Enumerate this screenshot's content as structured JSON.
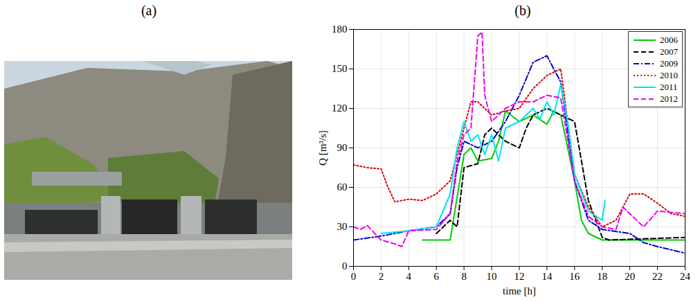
{
  "photo": {
    "label": "(a)"
  },
  "chart_data": {
    "type": "line",
    "title": "(b)",
    "x_label": "time [h]",
    "y_label": "Q [m³/s]",
    "xlim": [
      0,
      24
    ],
    "xticks": [
      0,
      2,
      4,
      6,
      8,
      10,
      12,
      14,
      16,
      18,
      20,
      22,
      24
    ],
    "ylim": [
      0,
      180
    ],
    "yticks": [
      0,
      30,
      60,
      90,
      120,
      150,
      180
    ],
    "grid": true,
    "legend": "top-right",
    "series": [
      {
        "name": "2006",
        "color": "#00cc00",
        "line_style": "solid",
        "x": [
          5,
          7,
          8,
          8.5,
          9,
          10,
          10.5,
          11,
          12,
          13,
          14,
          14.5,
          15,
          16,
          16.5,
          17,
          18,
          24
        ],
        "values": [
          20,
          20,
          85,
          90,
          80,
          82,
          95,
          118,
          110,
          115,
          108,
          118,
          115,
          65,
          35,
          25,
          20,
          20
        ]
      },
      {
        "name": "2007",
        "color": "#000000",
        "line_style": "dashed",
        "x": [
          6,
          7,
          7.5,
          8,
          9,
          9.5,
          10,
          11,
          12,
          12.5,
          13,
          14,
          15,
          16,
          17,
          18,
          18.5,
          24
        ],
        "values": [
          25,
          35,
          30,
          75,
          78,
          100,
          105,
          95,
          90,
          105,
          115,
          120,
          115,
          110,
          50,
          22,
          20,
          22
        ]
      },
      {
        "name": "2009",
        "color": "#0000cc",
        "line_style": "dashdot",
        "x": [
          0,
          2,
          4,
          6,
          7,
          7.5,
          8,
          9,
          10,
          11,
          12,
          13,
          14,
          15,
          16,
          17,
          18,
          20,
          21,
          22,
          24
        ],
        "values": [
          20,
          23,
          27,
          30,
          40,
          75,
          95,
          90,
          95,
          110,
          130,
          155,
          160,
          140,
          65,
          35,
          28,
          25,
          18,
          15,
          10
        ]
      },
      {
        "name": "2010",
        "color": "#dd0000",
        "line_style": "dotted",
        "x": [
          0,
          1,
          2,
          2.5,
          3,
          3.5,
          4,
          5,
          6,
          7,
          8,
          8.5,
          9,
          10,
          11,
          12,
          13,
          14,
          15,
          16,
          17,
          18,
          19,
          20,
          21,
          22,
          23,
          24
        ],
        "values": [
          77,
          75,
          74,
          60,
          49,
          50,
          51,
          50,
          55,
          65,
          105,
          125,
          125,
          115,
          118,
          120,
          135,
          145,
          150,
          70,
          45,
          30,
          35,
          55,
          55,
          48,
          40,
          38
        ]
      },
      {
        "name": "2011",
        "color": "#00e5ee",
        "line_style": "solid",
        "x": [
          2,
          4,
          6,
          7,
          7.5,
          8,
          8.5,
          9,
          9.5,
          10,
          10.5,
          11,
          12,
          13,
          13.5,
          14,
          14.5,
          15,
          15.5,
          16,
          17,
          18,
          18.2
        ],
        "values": [
          25,
          27,
          30,
          55,
          90,
          110,
          95,
          100,
          85,
          100,
          80,
          105,
          110,
          120,
          112,
          125,
          115,
          138,
          110,
          70,
          42,
          35,
          50
        ]
      },
      {
        "name": "2012",
        "color": "#ee00ee",
        "line_style": "dashed",
        "x": [
          0,
          0.5,
          1,
          2,
          3,
          3.5,
          4,
          6,
          7,
          7.5,
          8,
          8.5,
          9,
          9.3,
          9.5,
          10,
          11,
          12,
          13,
          14,
          15,
          16,
          17,
          18,
          19,
          19.5,
          20,
          21,
          22,
          24
        ],
        "values": [
          30,
          28,
          31,
          20,
          17,
          15,
          27,
          28,
          40,
          80,
          100,
          105,
          175,
          178,
          130,
          110,
          120,
          125,
          125,
          130,
          128,
          65,
          38,
          30,
          28,
          45,
          40,
          30,
          42,
          40
        ]
      }
    ]
  }
}
